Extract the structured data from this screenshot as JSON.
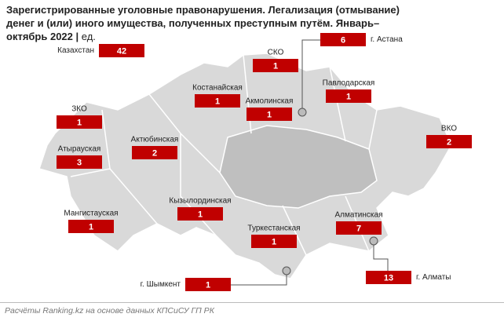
{
  "header": {
    "title": "Зарегистрированные уголовные правонарушения. Легализация (отмывание) денег и (или) иного имущества, полученных преступным путём. Январь–октябрь 2022",
    "unit": "ед."
  },
  "regions": [
    {
      "name": "Казахстан",
      "value": 42
    },
    {
      "name": "СКО",
      "value": 1
    },
    {
      "name": "г. Астана",
      "value": 6
    },
    {
      "name": "Костанайская",
      "value": 1
    },
    {
      "name": "Акмолинская",
      "value": 1
    },
    {
      "name": "Павлодарская",
      "value": 1
    },
    {
      "name": "ЗКО",
      "value": 1
    },
    {
      "name": "ВКО",
      "value": 2
    },
    {
      "name": "Актюбинская",
      "value": 2
    },
    {
      "name": "Атырауская",
      "value": 3
    },
    {
      "name": "Кызылординская",
      "value": 1
    },
    {
      "name": "Мангистауская",
      "value": 1
    },
    {
      "name": "Алматинская",
      "value": 7
    },
    {
      "name": "Туркестанская",
      "value": 1
    },
    {
      "name": "г. Шымкент",
      "value": 1
    },
    {
      "name": "г. Алматы",
      "value": 13
    }
  ],
  "footer": "Расчёты Ranking.kz на основе данных КПСиСУ ГП РК"
}
